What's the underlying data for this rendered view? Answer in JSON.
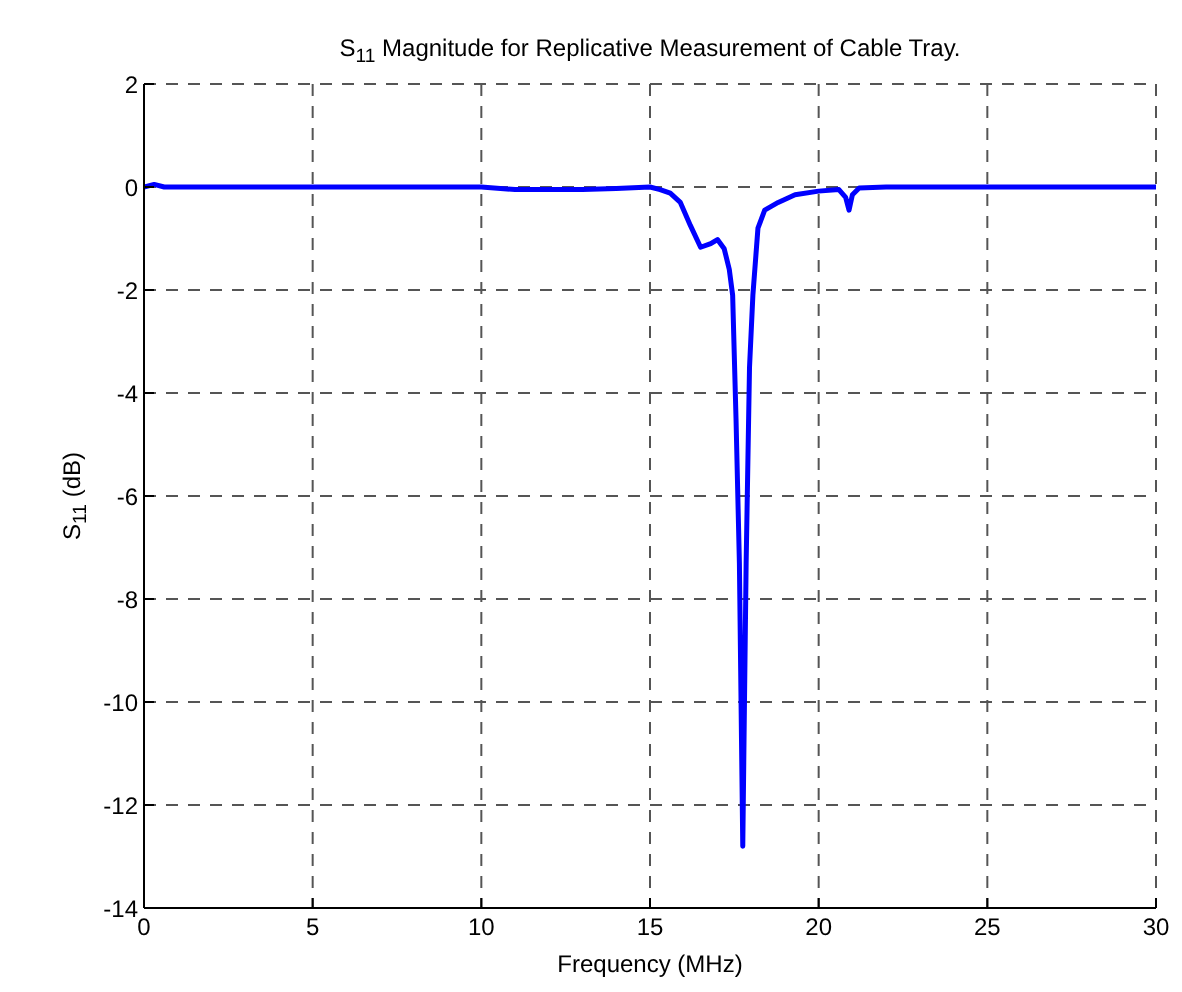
{
  "chart_data": {
    "type": "line",
    "title": "S$_{11}$ Magnitude for Replicative Measurement of Cable Tray.",
    "xlabel": "Frequency (MHz)",
    "ylabel": "S$_{11}$ (dB)",
    "x": [
      0,
      0.3,
      0.6,
      5,
      10,
      11,
      12,
      13,
      14,
      15,
      15.3,
      15.6,
      15.9,
      16.2,
      16.5,
      16.8,
      17.0,
      17.2,
      17.35,
      17.45,
      17.55,
      17.65,
      17.75,
      17.85,
      17.95,
      18.05,
      18.2,
      18.4,
      18.8,
      19.3,
      20,
      20.6,
      20.8,
      20.9,
      21.0,
      21.2,
      22,
      25,
      27,
      30
    ],
    "series": [
      {
        "color": "#0000ff",
        "values": [
          0,
          0.05,
          0,
          0,
          0,
          -0.05,
          -0.05,
          -0.05,
          -0.03,
          0,
          -0.05,
          -0.12,
          -0.3,
          -0.75,
          -1.17,
          -1.1,
          -1.02,
          -1.2,
          -1.6,
          -2.1,
          -4.5,
          -7.3,
          -12.8,
          -7.3,
          -3.5,
          -2.1,
          -0.8,
          -0.45,
          -0.3,
          -0.15,
          -0.08,
          -0.05,
          -0.2,
          -0.45,
          -0.15,
          -0.02,
          0,
          0,
          0,
          0
        ]
      }
    ],
    "xlim": [
      0,
      30
    ],
    "xticks": [
      0,
      5,
      10,
      15,
      20,
      25,
      30
    ],
    "ylim": [
      -14,
      2
    ],
    "yticks": [
      -14,
      -12,
      -10,
      -8,
      -6,
      -4,
      -2,
      0,
      2
    ],
    "grid": true,
    "line_style": "solid",
    "marker": "none",
    "legend": false
  }
}
